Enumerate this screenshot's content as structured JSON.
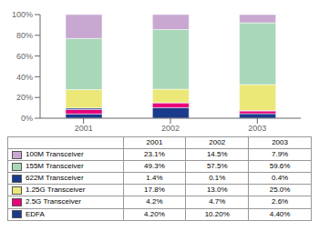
{
  "chart_data": {
    "type": "bar",
    "stacked": true,
    "grid": false,
    "categories": [
      "2001",
      "2002",
      "2003"
    ],
    "ylim": [
      0,
      100
    ],
    "yticks": [
      {
        "value": 0,
        "label": "0%"
      },
      {
        "value": 20,
        "label": "20%"
      },
      {
        "value": 40,
        "label": "40%"
      },
      {
        "value": 60,
        "label": "60%"
      },
      {
        "value": 80,
        "label": "80%"
      },
      {
        "value": 100,
        "label": "100%"
      }
    ],
    "series": [
      {
        "name": "EDFA",
        "color": "#1a3a8c",
        "values": [
          4.2,
          10.2,
          4.4
        ],
        "value_labels": [
          "4.20%",
          "10.20%",
          "4.40%"
        ]
      },
      {
        "name": "2.5G Transceiver",
        "color": "#e8007a",
        "values": [
          4.2,
          4.7,
          2.6
        ],
        "value_labels": [
          "4.2%",
          "4.7%",
          "2.6%"
        ]
      },
      {
        "name": "622M Transceiver",
        "color": "#1a3a8c",
        "values": [
          1.4,
          0.1,
          0.4
        ],
        "value_labels": [
          "1.4%",
          "0.1%",
          "0.4%"
        ]
      },
      {
        "name": "1.25G Transceiver",
        "color": "#ece878",
        "values": [
          17.8,
          13.0,
          25.0
        ],
        "value_labels": [
          "17.8%",
          "13.0%",
          "25.0%"
        ]
      },
      {
        "name": "155M Transceiver",
        "color": "#a8d8b8",
        "values": [
          49.3,
          57.5,
          59.6
        ],
        "value_labels": [
          "49.3%",
          "57.5%",
          "59.6%"
        ]
      },
      {
        "name": "100M Transceiver",
        "color": "#c8a8d0",
        "values": [
          23.1,
          14.5,
          7.9
        ],
        "value_labels": [
          "23.1%",
          "14.5%",
          "7.9%"
        ]
      }
    ],
    "table_rows": [
      "100M Transceiver",
      "155M Transceiver",
      "622M Transceiver",
      "1.25G Transceiver",
      "2.5G Transceiver",
      "EDFA"
    ]
  }
}
